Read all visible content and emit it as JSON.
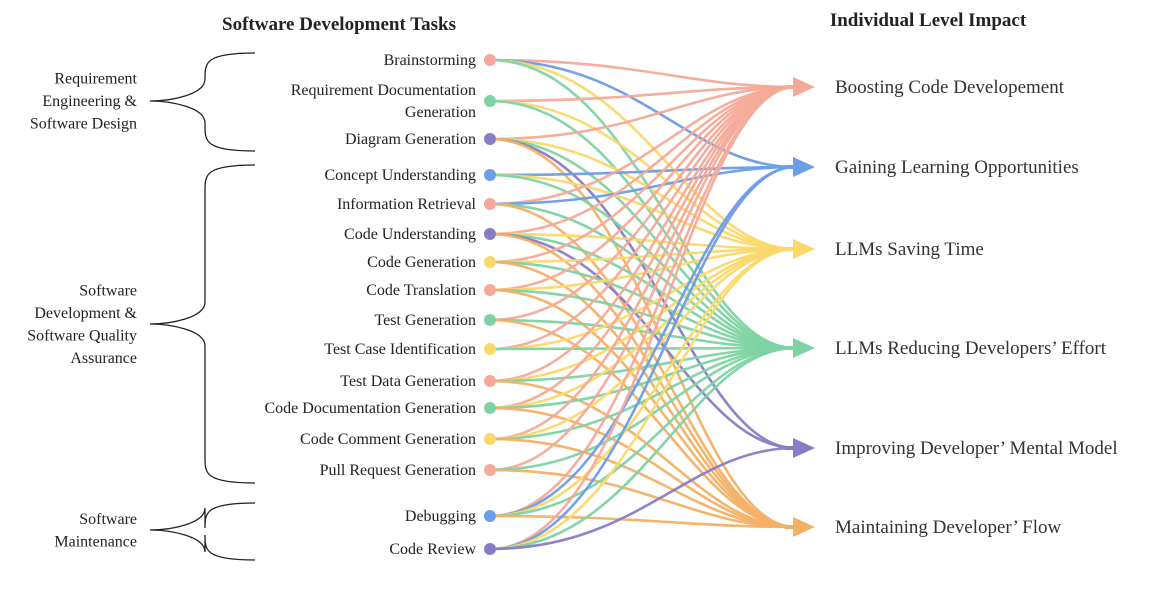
{
  "headers": {
    "tasks": "Software Development Tasks",
    "impacts": "Individual Level Impact"
  },
  "colors": {
    "pink": "#f4aa98",
    "blue": "#6b9de8",
    "yellow": "#fbd86a",
    "green": "#7dd3a3",
    "purple": "#8b7bc4",
    "orange": "#f4b064"
  },
  "groups": [
    {
      "lines": [
        "Requirement",
        "Engineering &",
        "Software Design"
      ]
    },
    {
      "lines": [
        "Software",
        "Development &",
        "Software Quality",
        "Assurance"
      ]
    },
    {
      "lines": [
        "Software",
        "Maintenance"
      ]
    }
  ],
  "impacts": [
    {
      "label": "Boosting Code Developement",
      "color": "pink"
    },
    {
      "label": "Gaining Learning Opportunities",
      "color": "blue"
    },
    {
      "label": "LLMs Saving Time",
      "color": "yellow"
    },
    {
      "label": "LLMs Reducing Developers’ Effort",
      "color": "green"
    },
    {
      "label": "Improving Developer’ Mental Model",
      "color": "purple"
    },
    {
      "label": "Maintaining Developer’ Flow",
      "color": "orange"
    }
  ],
  "tasks": [
    {
      "lines": [
        "Brainstorming"
      ],
      "color": "pink",
      "links": [
        0,
        1,
        2,
        3
      ]
    },
    {
      "lines": [
        "Requirement Documentation",
        "Generation"
      ],
      "color": "green",
      "links": [
        0,
        2,
        3
      ]
    },
    {
      "lines": [
        "Diagram Generation"
      ],
      "color": "purple",
      "links": [
        0,
        2,
        3,
        4,
        5
      ]
    },
    {
      "lines": [
        "Concept Understanding"
      ],
      "color": "blue",
      "links": [
        1,
        2,
        3
      ]
    },
    {
      "lines": [
        "Information Retrieval"
      ],
      "color": "pink",
      "links": [
        0,
        1,
        3,
        5
      ]
    },
    {
      "lines": [
        "Code Understanding"
      ],
      "color": "purple",
      "links": [
        0,
        2,
        3,
        4,
        5
      ]
    },
    {
      "lines": [
        "Code Generation"
      ],
      "color": "yellow",
      "links": [
        0,
        2,
        3,
        5
      ]
    },
    {
      "lines": [
        "Code Translation"
      ],
      "color": "pink",
      "links": [
        0,
        2,
        3,
        5
      ]
    },
    {
      "lines": [
        "Test Generation"
      ],
      "color": "green",
      "links": [
        0,
        3,
        5
      ]
    },
    {
      "lines": [
        "Test Case Identification"
      ],
      "color": "yellow",
      "links": [
        0,
        2,
        3
      ]
    },
    {
      "lines": [
        "Test Data Generation"
      ],
      "color": "pink",
      "links": [
        0,
        2,
        3,
        5
      ]
    },
    {
      "lines": [
        "Code Documentation Generation"
      ],
      "color": "green",
      "links": [
        0,
        2,
        3,
        5
      ]
    },
    {
      "lines": [
        "Code Comment Generation"
      ],
      "color": "yellow",
      "links": [
        0,
        2,
        3,
        5
      ]
    },
    {
      "lines": [
        "Pull Request Generation"
      ],
      "color": "pink",
      "links": [
        0,
        3,
        5
      ]
    },
    {
      "lines": [
        "Debugging"
      ],
      "color": "blue",
      "links": [
        0,
        1,
        2,
        3,
        5
      ]
    },
    {
      "lines": [
        "Code Review"
      ],
      "color": "purple",
      "links": [
        0,
        1,
        2,
        3,
        4
      ]
    }
  ]
}
